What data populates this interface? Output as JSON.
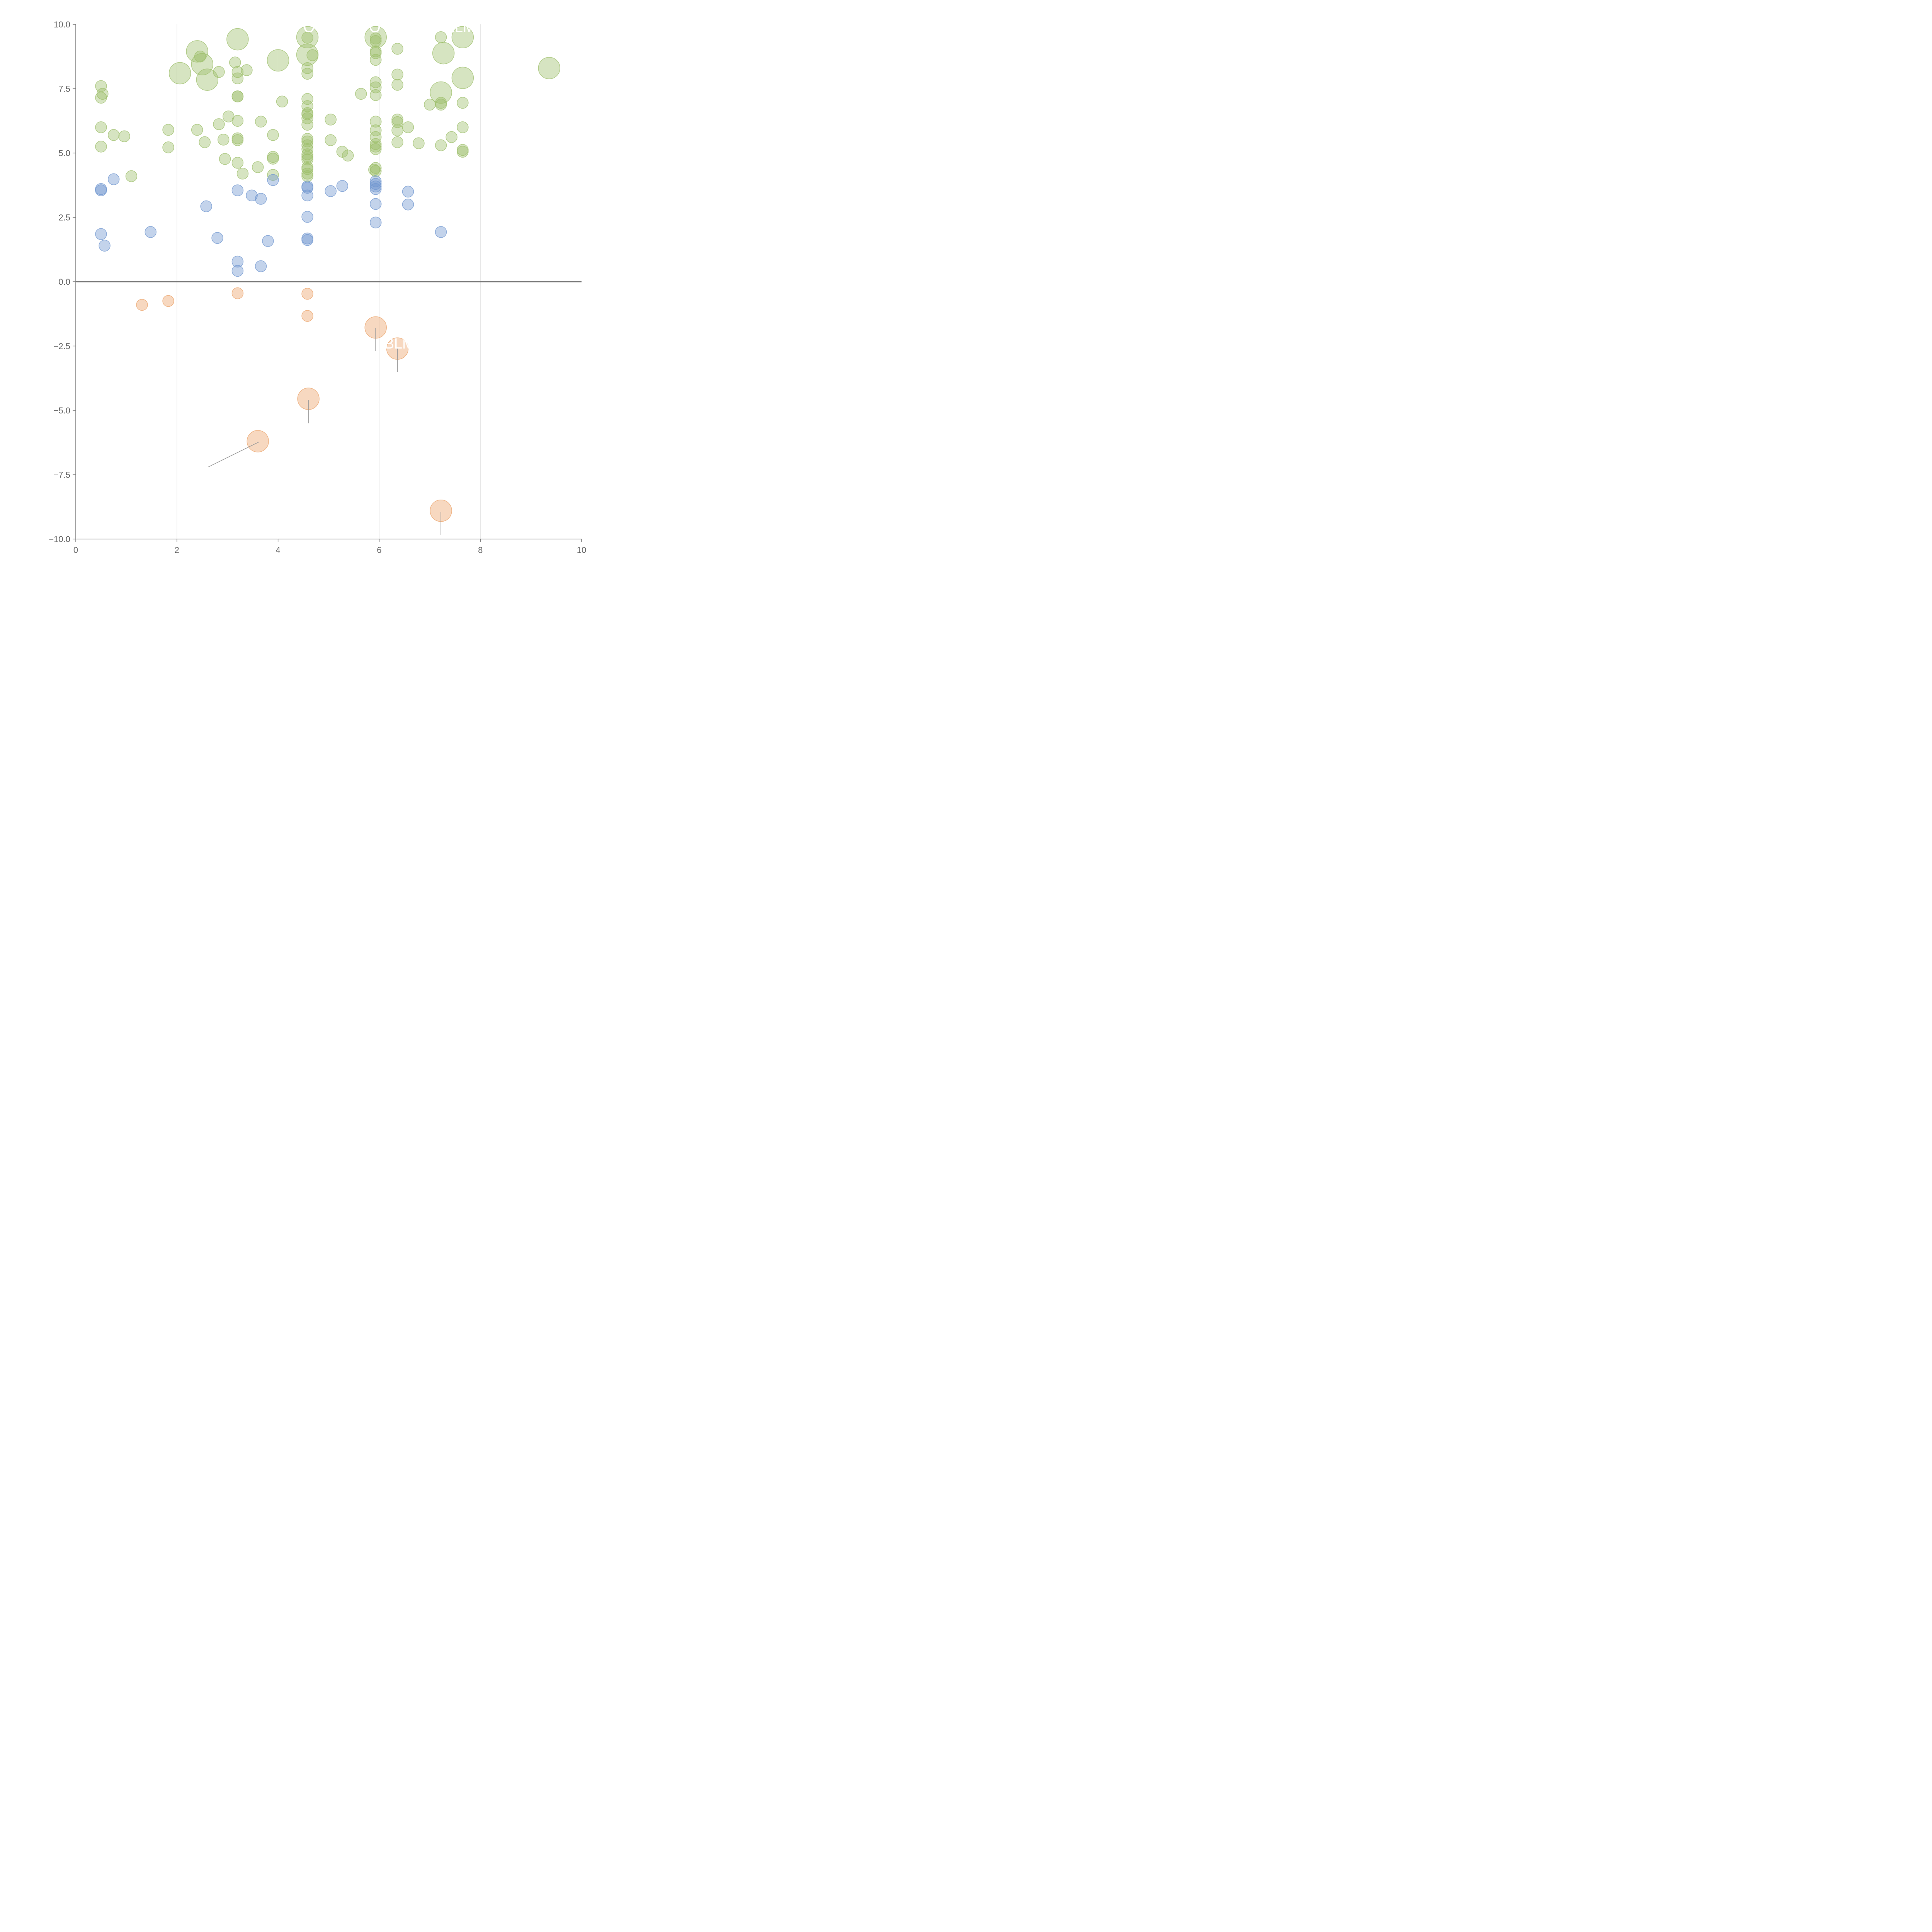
{
  "chart_data": {
    "type": "scatter",
    "title": "",
    "xlabel": "",
    "ylabel": "",
    "xlim": [
      0,
      10
    ],
    "ylim": [
      -10,
      10
    ],
    "x_ticks": [
      "0",
      "2",
      "4",
      "6",
      "8",
      "10"
    ],
    "y_ticks": [
      "−10.0",
      "−7.5",
      "−5.0",
      "−2.5",
      "0.0",
      "2.5",
      "5.0",
      "7.5",
      "10.0"
    ],
    "x_tick_values": [
      0,
      2,
      4,
      6,
      8,
      10
    ],
    "y_tick_values": [
      -10,
      -7.5,
      -5,
      -2.5,
      0,
      2.5,
      5,
      7.5,
      10
    ],
    "grid": "vertical",
    "zero_line": true,
    "colors": {
      "green": "#9dbf6b",
      "blue": "#6f96cf",
      "orange": "#eba36a"
    },
    "annotations": [
      {
        "text": "O",
        "x": 4.5,
        "y": 9.7
      },
      {
        "text": "O",
        "x": 5.8,
        "y": 9.7
      },
      {
        "text": "XLM",
        "x": 7.3,
        "y": 9.7
      },
      {
        "text": "BLM",
        "x": 6.1,
        "y": -2.6
      }
    ],
    "leader_lines": [
      {
        "x1": 3.62,
        "y1": -6.23,
        "x2": 2.62,
        "y2": -7.2
      },
      {
        "x1": 4.6,
        "y1": -4.6,
        "x2": 4.6,
        "y2": -5.5
      },
      {
        "x1": 5.93,
        "y1": -1.8,
        "x2": 5.93,
        "y2": -2.7
      },
      {
        "x1": 6.36,
        "y1": -2.6,
        "x2": 6.36,
        "y2": -3.5
      },
      {
        "x1": 7.22,
        "y1": -8.95,
        "x2": 7.22,
        "y2": -9.85
      }
    ],
    "series": [
      {
        "color": "green",
        "points": [
          [
            0.5,
            7.6,
            1
          ],
          [
            0.53,
            7.3,
            1
          ],
          [
            0.5,
            7.15,
            1
          ],
          [
            0.5,
            6.0,
            1
          ],
          [
            0.5,
            5.25,
            1
          ],
          [
            0.75,
            5.7,
            1
          ],
          [
            0.96,
            5.65,
            1
          ],
          [
            1.1,
            4.1,
            1
          ],
          [
            1.83,
            5.9,
            1
          ],
          [
            1.83,
            5.22,
            1
          ],
          [
            2.06,
            8.1,
            2
          ],
          [
            2.4,
            8.95,
            2
          ],
          [
            2.46,
            8.75,
            1
          ],
          [
            2.5,
            8.45,
            2
          ],
          [
            2.6,
            7.85,
            2
          ],
          [
            2.4,
            5.9,
            1
          ],
          [
            2.55,
            5.42,
            1
          ],
          [
            2.83,
            8.15,
            1
          ],
          [
            2.83,
            6.12,
            1
          ],
          [
            2.92,
            5.52,
            1
          ],
          [
            2.95,
            4.77,
            1
          ],
          [
            3.02,
            6.42,
            1
          ],
          [
            3.15,
            8.52,
            1
          ],
          [
            3.2,
            9.42,
            2
          ],
          [
            3.2,
            8.15,
            1
          ],
          [
            3.2,
            7.9,
            1
          ],
          [
            3.2,
            7.2,
            1
          ],
          [
            3.2,
            7.2,
            1
          ],
          [
            3.2,
            6.25,
            1
          ],
          [
            3.2,
            5.57,
            1
          ],
          [
            3.2,
            5.5,
            1
          ],
          [
            3.2,
            4.62,
            1
          ],
          [
            3.3,
            4.2,
            1
          ],
          [
            3.38,
            8.22,
            1
          ],
          [
            3.6,
            4.45,
            1
          ],
          [
            3.66,
            6.22,
            1
          ],
          [
            3.9,
            5.7,
            1
          ],
          [
            3.9,
            4.85,
            1
          ],
          [
            3.9,
            4.78,
            1
          ],
          [
            3.9,
            4.15,
            1
          ],
          [
            4.0,
            8.6,
            2
          ],
          [
            4.08,
            7.0,
            1
          ],
          [
            4.58,
            9.5,
            2
          ],
          [
            4.58,
            9.48,
            1
          ],
          [
            4.58,
            8.82,
            2
          ],
          [
            4.68,
            8.8,
            1
          ],
          [
            4.58,
            8.3,
            1
          ],
          [
            4.58,
            8.08,
            1
          ],
          [
            4.58,
            7.1,
            1
          ],
          [
            4.58,
            6.82,
            1
          ],
          [
            4.58,
            6.55,
            1
          ],
          [
            4.58,
            6.5,
            1
          ],
          [
            4.58,
            6.35,
            1
          ],
          [
            4.58,
            6.1,
            1
          ],
          [
            4.58,
            5.55,
            1
          ],
          [
            4.58,
            5.45,
            1
          ],
          [
            4.58,
            5.3,
            1
          ],
          [
            4.58,
            5.15,
            1
          ],
          [
            4.58,
            4.95,
            1
          ],
          [
            4.58,
            4.85,
            1
          ],
          [
            4.58,
            4.75,
            1
          ],
          [
            4.58,
            4.45,
            1
          ],
          [
            4.58,
            4.38,
            1
          ],
          [
            4.58,
            4.2,
            1
          ],
          [
            4.58,
            4.1,
            1
          ],
          [
            5.04,
            6.3,
            1
          ],
          [
            5.04,
            5.5,
            1
          ],
          [
            5.27,
            5.05,
            1
          ],
          [
            5.38,
            4.9,
            1
          ],
          [
            5.64,
            7.3,
            1
          ],
          [
            5.9,
            4.35,
            1
          ],
          [
            5.93,
            9.5,
            2
          ],
          [
            5.93,
            9.45,
            1
          ],
          [
            5.93,
            9.35,
            1
          ],
          [
            5.93,
            8.95,
            1
          ],
          [
            5.93,
            8.88,
            1
          ],
          [
            5.93,
            8.62,
            1
          ],
          [
            5.93,
            7.75,
            1
          ],
          [
            5.93,
            7.55,
            1
          ],
          [
            5.93,
            7.25,
            1
          ],
          [
            5.93,
            6.22,
            1
          ],
          [
            5.93,
            5.88,
            1
          ],
          [
            5.93,
            5.62,
            1
          ],
          [
            5.93,
            5.35,
            1
          ],
          [
            5.93,
            5.25,
            1
          ],
          [
            5.93,
            5.15,
            1
          ],
          [
            5.93,
            4.42,
            1
          ],
          [
            5.93,
            4.3,
            1
          ],
          [
            6.36,
            9.05,
            1
          ],
          [
            6.36,
            8.05,
            1
          ],
          [
            6.36,
            7.65,
            1
          ],
          [
            6.36,
            6.3,
            1
          ],
          [
            6.36,
            6.2,
            1
          ],
          [
            6.36,
            5.88,
            1
          ],
          [
            6.36,
            5.42,
            1
          ],
          [
            6.57,
            6.0,
            1
          ],
          [
            6.78,
            5.38,
            1
          ],
          [
            7.0,
            6.88,
            1
          ],
          [
            7.22,
            9.5,
            1
          ],
          [
            7.27,
            8.88,
            2
          ],
          [
            7.22,
            7.35,
            2
          ],
          [
            7.22,
            6.95,
            1
          ],
          [
            7.22,
            6.88,
            1
          ],
          [
            7.22,
            5.3,
            1
          ],
          [
            7.43,
            5.62,
            1
          ],
          [
            7.65,
            9.5,
            2
          ],
          [
            7.65,
            7.92,
            2
          ],
          [
            7.65,
            6.95,
            1
          ],
          [
            7.65,
            6.0,
            1
          ],
          [
            7.65,
            5.12,
            1
          ],
          [
            7.65,
            5.05,
            1
          ],
          [
            9.36,
            8.3,
            2
          ]
        ]
      },
      {
        "color": "blue",
        "points": [
          [
            0.5,
            3.6,
            1
          ],
          [
            0.5,
            3.55,
            1
          ],
          [
            0.5,
            1.85,
            1
          ],
          [
            0.57,
            1.4,
            1
          ],
          [
            0.75,
            3.98,
            1
          ],
          [
            1.48,
            1.93,
            1
          ],
          [
            2.58,
            2.93,
            1
          ],
          [
            2.8,
            1.7,
            1
          ],
          [
            3.2,
            3.55,
            1
          ],
          [
            3.2,
            0.78,
            1
          ],
          [
            3.2,
            0.42,
            1
          ],
          [
            3.48,
            3.35,
            1
          ],
          [
            3.66,
            3.22,
            1
          ],
          [
            3.66,
            0.6,
            1
          ],
          [
            3.8,
            1.58,
            1
          ],
          [
            3.9,
            3.95,
            1
          ],
          [
            4.58,
            3.7,
            1
          ],
          [
            4.58,
            3.65,
            1
          ],
          [
            4.58,
            3.35,
            1
          ],
          [
            4.58,
            2.52,
            1
          ],
          [
            4.58,
            1.68,
            1
          ],
          [
            4.58,
            1.62,
            1
          ],
          [
            5.04,
            3.52,
            1
          ],
          [
            5.27,
            3.72,
            1
          ],
          [
            5.93,
            3.9,
            1
          ],
          [
            5.93,
            3.8,
            1
          ],
          [
            5.93,
            3.7,
            1
          ],
          [
            5.93,
            3.6,
            1
          ],
          [
            5.93,
            3.02,
            1
          ],
          [
            5.93,
            2.3,
            1
          ],
          [
            6.57,
            3.5,
            1
          ],
          [
            6.57,
            3.0,
            1
          ],
          [
            7.22,
            1.93,
            1
          ]
        ]
      },
      {
        "color": "orange",
        "points": [
          [
            1.31,
            -0.9,
            1
          ],
          [
            1.83,
            -0.75,
            1
          ],
          [
            3.2,
            -0.45,
            1
          ],
          [
            4.58,
            -0.47,
            1
          ],
          [
            4.58,
            -1.33,
            1
          ],
          [
            5.93,
            -1.78,
            2
          ],
          [
            6.36,
            -2.6,
            2
          ],
          [
            4.6,
            -4.55,
            2
          ],
          [
            3.6,
            -6.2,
            2
          ],
          [
            7.22,
            -8.9,
            2
          ]
        ]
      }
    ]
  }
}
